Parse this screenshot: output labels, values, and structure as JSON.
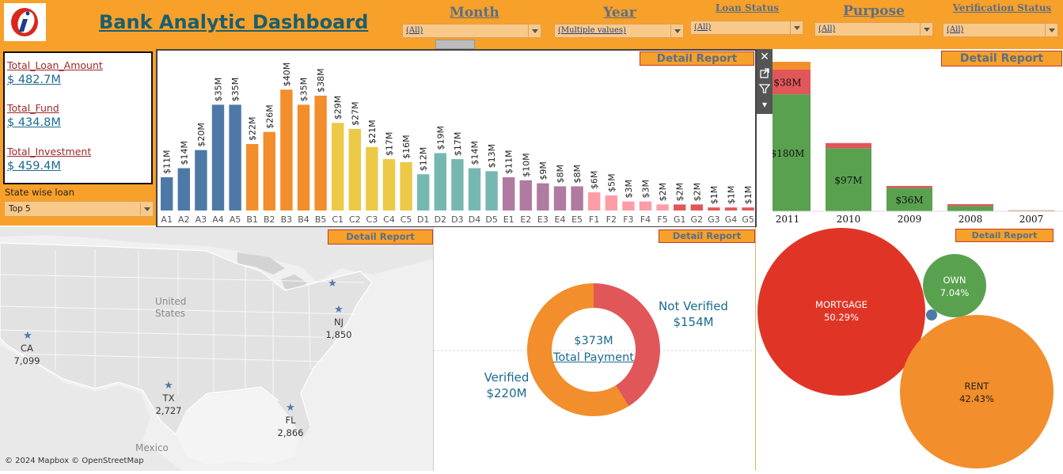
{
  "header": {
    "title": "Bank Analytic Dashboard",
    "logo_glyph": "i"
  },
  "filters": [
    {
      "label": "Month",
      "value": "(All)"
    },
    {
      "label": "Year",
      "value": "(Multiple values)"
    },
    {
      "label": "Loan Status",
      "value": "(All)"
    },
    {
      "label": "Purpose",
      "value": "(All)"
    },
    {
      "label": "Verification Status",
      "value": "(All)"
    }
  ],
  "kpis": [
    {
      "label": "Total_Loan_Amount",
      "value": "$ 482.7M"
    },
    {
      "label": "Total_Fund",
      "value": "$ 434.8M"
    },
    {
      "label": "Total_Investment",
      "value": "$ 459.4M"
    }
  ],
  "state_filter": {
    "label": "State wise loan",
    "value": "Top 5"
  },
  "detail_report_label": "Detail Report",
  "toolbar": {
    "close": "✕",
    "popout": "⤢",
    "filter": "⏷",
    "menu": "▾"
  },
  "chart_data": [
    {
      "type": "bar",
      "categories": [
        "A1",
        "A2",
        "A3",
        "A4",
        "A5",
        "B1",
        "B2",
        "B3",
        "B4",
        "B5",
        "C1",
        "C2",
        "C3",
        "C4",
        "C5",
        "D1",
        "D2",
        "D3",
        "D4",
        "D5",
        "E1",
        "E2",
        "E3",
        "E4",
        "E5",
        "F1",
        "F2",
        "F3",
        "F4",
        "F5",
        "G1",
        "G2",
        "G3",
        "G4",
        "G5"
      ],
      "values": [
        11,
        14,
        20,
        35,
        35,
        22,
        26,
        40,
        35,
        38,
        29,
        27,
        21,
        17,
        16,
        12,
        19,
        17,
        14,
        13,
        11,
        10,
        9,
        8,
        8,
        6,
        5,
        3,
        3,
        2,
        2,
        2,
        1,
        1,
        1
      ],
      "labels": [
        "$11M",
        "$14M",
        "$20M",
        "$35M",
        "$35M",
        "$22M",
        "$26M",
        "$40M",
        "$35M",
        "$38M",
        "$29M",
        "$27M",
        "$21M",
        "$17M",
        "$16M",
        "$12M",
        "$19M",
        "$17M",
        "$14M",
        "$13M",
        "$11M",
        "$10M",
        "$9M",
        "$8M",
        "$8M",
        "$6M",
        "$5M",
        "$3M",
        "$3M",
        "$2M",
        "$2M",
        "$2M",
        "$1M",
        "$1M",
        "$1M"
      ],
      "group_colors": {
        "A": "#4e79a7",
        "B": "#f28e2b",
        "C": "#edc948",
        "D": "#76b7b2",
        "E": "#b07aa1",
        "F": "#ff9da7",
        "G": "#e15759"
      },
      "ylim": [
        0,
        44
      ]
    },
    {
      "type": "bar",
      "stacked": true,
      "categories": [
        "2011",
        "2010",
        "2009",
        "2008",
        "2007"
      ],
      "series": [
        {
          "values": [
            180,
            97,
            36,
            8,
            1
          ],
          "color": "#59a14f"
        },
        {
          "values": [
            38,
            8,
            3,
            3,
            0.5
          ],
          "color": "#e15759"
        },
        {
          "values": [
            12,
            0,
            0,
            0,
            0
          ],
          "color": "#f28e2b"
        }
      ],
      "labels": [
        [
          "$180M",
          "$38M"
        ],
        [
          "$97M"
        ],
        [
          "$36M"
        ],
        [],
        []
      ],
      "ylim": [
        0,
        235
      ]
    },
    {
      "type": "pie",
      "donut": true,
      "slices": [
        {
          "name": "Not Verified",
          "value": 154,
          "label": "$154M",
          "color": "#e15759"
        },
        {
          "name": "Verified",
          "value": 220,
          "label": "$220M",
          "color": "#f28e2b"
        }
      ],
      "center_value": "$373M",
      "center_label": "Total Payment"
    },
    {
      "type": "scatter",
      "bubbles": [
        {
          "name": "MORTGAGE",
          "pct": "50.29%",
          "value": 50.29,
          "color": "#e03526"
        },
        {
          "name": "OWN",
          "pct": "7.04%",
          "value": 7.04,
          "color": "#59a14f"
        },
        {
          "name": "RENT",
          "pct": "42.43%",
          "value": 42.43,
          "color": "#f28e2b"
        }
      ]
    }
  ],
  "map": {
    "labels": {
      "country": "United\nStates",
      "mexico": "Mexico"
    },
    "attribution": "© 2024 Mapbox © OpenStreetMap",
    "states": [
      {
        "code": "CA",
        "count": "7,099"
      },
      {
        "code": "TX",
        "count": "2,727"
      },
      {
        "code": "FL",
        "count": "2,866"
      },
      {
        "code": "NJ",
        "count": "1,850"
      }
    ]
  }
}
